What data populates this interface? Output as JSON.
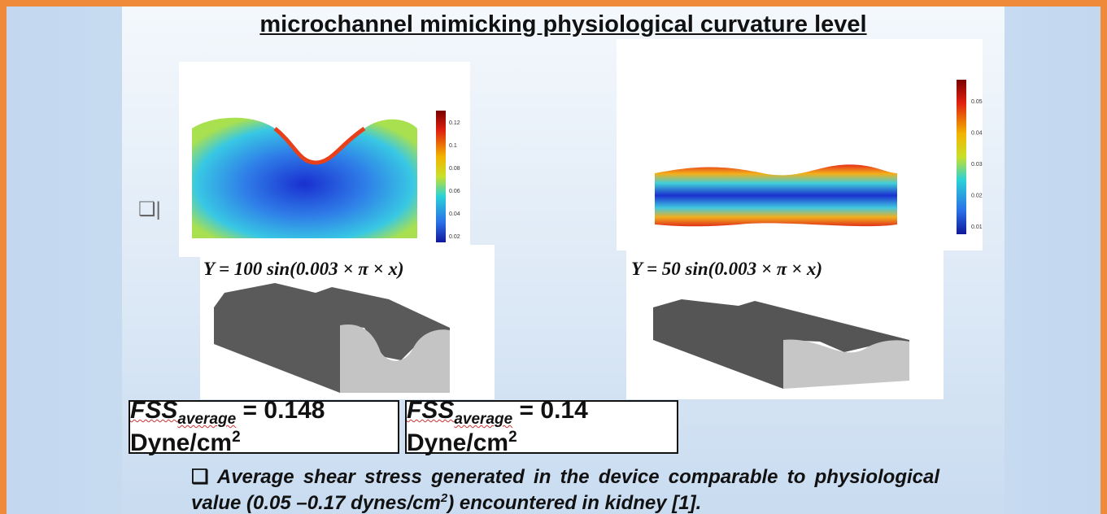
{
  "title": "microchannel mimicking physiological curvature level",
  "bullet": "❑|",
  "panels": [
    {
      "colorbar_ticks": [
        "0.12",
        "0.1",
        "0.08",
        "0.06",
        "0.04",
        "0.02"
      ],
      "equation": "Y = 100 sin(0.003 × π × x)",
      "result": {
        "symbol": "FSS",
        "subscript": "average",
        "value": " = 0.148 Dyne/cm",
        "superscript": "2"
      }
    },
    {
      "colorbar_ticks": [
        "0.05",
        "0.04",
        "0.03",
        "0.02",
        "0.01"
      ],
      "equation": "Y = 50 sin(0.003 × π × x)",
      "result": {
        "symbol": "FSS",
        "subscript": "average",
        "value": " = 0.14 Dyne/cm",
        "superscript": "2"
      }
    }
  ],
  "note": {
    "bullet": "❑",
    "text_before": "Average shear stress generated in the device comparable to physiological value (0.05 –0.17 dynes/cm",
    "superscript": "2",
    "text_after": ") encountered in kidney [1]."
  }
}
